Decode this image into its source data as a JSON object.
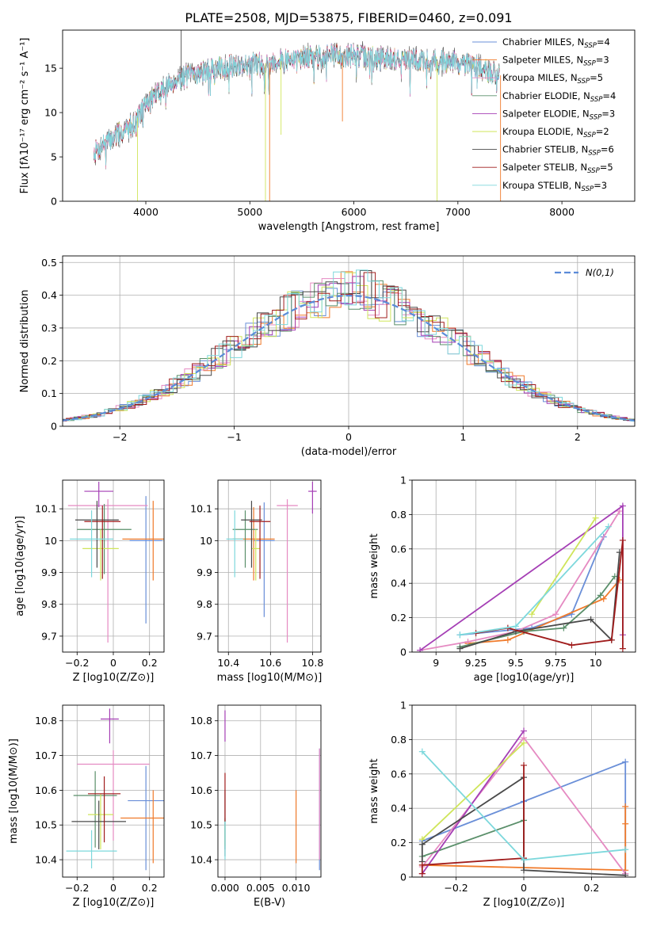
{
  "figure": {
    "title": "PLATE=2508, MJD=53875, FIBERID=0460, z=0.091"
  },
  "model_colors": {
    "Chabrier MILES": "#6a8fd8",
    "Salpeter MILES": "#f07a2a",
    "Kroupa MILES": "#e58ac2",
    "Chabrier ELODIE": "#5a8f6a",
    "Salpeter ELODIE": "#a53fb5",
    "Kroupa ELODIE": "#cfe55a",
    "Chabrier STELIB": "#4a4a4a",
    "Salpeter STELIB": "#a01c1c",
    "Kroupa STELIB": "#7dd8dc"
  },
  "chart_data": [
    {
      "id": "spectrum",
      "type": "line",
      "xlabel": "wavelength [Angstrom, rest frame]",
      "ylabel": "Flux [fλ10⁻¹⁷ erg cm⁻² s⁻¹ A⁻¹]",
      "xlim": [
        3200,
        8700
      ],
      "ylim": [
        0,
        19.3
      ],
      "xticks": [
        4000,
        5000,
        6000,
        7000,
        8000
      ],
      "yticks": [
        0,
        5,
        10,
        15
      ],
      "legend_position": "upper right",
      "legend": [
        "Chabrier MILES, N_SSP=4",
        "Salpeter MILES, N_SSP=3",
        "Kroupa MILES, N_SSP=5",
        "Chabrier ELODIE, N_SSP=4",
        "Salpeter ELODIE, N_SSP=3",
        "Kroupa ELODIE, N_SSP=2",
        "Chabrier STELIB, N_SSP=6",
        "Salpeter STELIB, N_SSP=5",
        "Kroupa STELIB, N_SSP=3"
      ],
      "legend_display": [
        {
          "pre": "Chabrier MILES, N",
          "sub": "SSP",
          "post": "=4"
        },
        {
          "pre": "Salpeter MILES, N",
          "sub": "SSP",
          "post": "=3"
        },
        {
          "pre": "Kroupa MILES, N",
          "sub": "SSP",
          "post": "=5"
        },
        {
          "pre": "Chabrier ELODIE, N",
          "sub": "SSP",
          "post": "=4"
        },
        {
          "pre": "Salpeter ELODIE, N",
          "sub": "SSP",
          "post": "=3"
        },
        {
          "pre": "Kroupa ELODIE, N",
          "sub": "SSP",
          "post": "=2"
        },
        {
          "pre": "Chabrier STELIB, N",
          "sub": "SSP",
          "post": "=6"
        },
        {
          "pre": "Salpeter STELIB, N",
          "sub": "SSP",
          "post": "=5"
        },
        {
          "pre": "Kroupa STELIB, N",
          "sub": "SSP",
          "post": "=3"
        }
      ],
      "legend_colors": [
        "#6a8fd8",
        "#f07a2a",
        "#e58ac2",
        "#5a8f6a",
        "#a53fb5",
        "#cfe55a",
        "#4a4a4a",
        "#a01c1c",
        "#7dd8dc"
      ],
      "continuum": {
        "x": [
          3500,
          3600,
          3700,
          3800,
          3900,
          4000,
          4100,
          4200,
          4300,
          4500,
          4700,
          4900,
          5100,
          5300,
          5500,
          5800,
          6000,
          6200,
          6500,
          6800,
          7000,
          7200,
          7400
        ],
        "y": [
          5.5,
          6.5,
          7.3,
          8.0,
          9.0,
          11.0,
          12.0,
          13.0,
          13.8,
          14.5,
          15.0,
          15.4,
          15.5,
          15.8,
          16.2,
          16.5,
          16.4,
          16.2,
          16.0,
          15.8,
          15.6,
          15.2,
          14.2
        ]
      },
      "spikes": [
        {
          "x": 3920,
          "y": 0
        },
        {
          "x": 4340,
          "y": 21
        },
        {
          "x": 5150,
          "y": 0
        },
        {
          "x": 5190,
          "y": 0
        },
        {
          "x": 5300,
          "y": 7.5
        },
        {
          "x": 5890,
          "y": 9.0
        },
        {
          "x": 6800,
          "y": 0
        },
        {
          "x": 7410,
          "y": 0
        }
      ]
    },
    {
      "id": "residual_hist",
      "type": "histogram",
      "xlabel": "(data-model)/error",
      "ylabel": "Normed distribution",
      "xlim": [
        -2.5,
        2.5
      ],
      "ylim": [
        0,
        0.52
      ],
      "xticks": [
        -2,
        -1,
        0,
        1,
        2
      ],
      "yticks": [
        0.0,
        0.1,
        0.2,
        0.3,
        0.4,
        0.5
      ],
      "grid": true,
      "legend_position": "upper right",
      "legend": [
        "N(0,1)"
      ],
      "reference_curve": {
        "name": "N(0,1)",
        "mean": 0,
        "sigma": 1,
        "color": "#5b8bd8",
        "style": "dashed"
      },
      "bin_width": 0.1
    },
    {
      "id": "age_vs_Z",
      "type": "scatter",
      "xlabel": "Z [log10(Z/Z⊙)]",
      "ylabel": "age  [log10(age/yr)]",
      "xlim": [
        -0.28,
        0.28
      ],
      "ylim": [
        9.65,
        10.19
      ],
      "xticks": [
        -0.2,
        0.0,
        0.2
      ],
      "yticks": [
        9.7,
        9.8,
        9.9,
        10.0,
        10.1
      ],
      "grid": true,
      "points": [
        {
          "model": "Chabrier MILES",
          "x": 0.18,
          "xerr": 0.09,
          "y": 10.0,
          "yerr": [
            0.26,
            0.14
          ]
        },
        {
          "model": "Salpeter MILES",
          "x": 0.22,
          "xerr": 0.17,
          "y": 10.005,
          "yerr": [
            0.13,
            0.12
          ]
        },
        {
          "model": "Kroupa MILES",
          "x": -0.03,
          "xerr": 0.22,
          "y": 10.11,
          "yerr": [
            0.43,
            0.02
          ]
        },
        {
          "model": "Chabrier ELODIE",
          "x": -0.05,
          "xerr": 0.15,
          "y": 10.035,
          "yerr": [
            0.14,
            0.08
          ]
        },
        {
          "model": "Salpeter ELODIE",
          "x": -0.08,
          "xerr": 0.08,
          "y": 10.155,
          "yerr": [
            0.05,
            0.03
          ]
        },
        {
          "model": "Kroupa ELODIE",
          "x": -0.07,
          "xerr": 0.1,
          "y": 9.975,
          "yerr": [
            0.1,
            0.06
          ]
        },
        {
          "model": "Chabrier STELIB",
          "x": -0.09,
          "xerr": 0.12,
          "y": 10.065,
          "yerr": [
            0.15,
            0.06
          ]
        },
        {
          "model": "Salpeter STELIB",
          "x": -0.06,
          "xerr": 0.1,
          "y": 10.06,
          "yerr": [
            0.18,
            0.05
          ]
        },
        {
          "model": "Kroupa STELIB",
          "x": -0.12,
          "xerr": 0.12,
          "y": 10.005,
          "yerr": [
            0.12,
            0.09
          ]
        }
      ]
    },
    {
      "id": "age_vs_mass",
      "type": "scatter",
      "xlabel": "mass [log10(M/M⊙)]",
      "ylabel": "",
      "xlim": [
        10.35,
        10.84
      ],
      "ylim": [
        9.65,
        10.19
      ],
      "xticks": [
        10.4,
        10.6,
        10.8
      ],
      "yticks": [
        9.7,
        9.8,
        9.9,
        10.0,
        10.1
      ],
      "grid": true,
      "points": [
        {
          "model": "Chabrier MILES",
          "x": 10.57,
          "xerr": 0.05,
          "y": 10.0,
          "yerr": [
            0.24,
            0.12
          ]
        },
        {
          "model": "Salpeter MILES",
          "x": 10.52,
          "xerr": 0.1,
          "y": 10.005,
          "yerr": [
            0.13,
            0.1
          ]
        },
        {
          "model": "Kroupa MILES",
          "x": 10.68,
          "xerr": 0.05,
          "y": 10.11,
          "yerr": [
            0.43,
            0.02
          ]
        },
        {
          "model": "Chabrier ELODIE",
          "x": 10.48,
          "xerr": 0.06,
          "y": 10.035,
          "yerr": [
            0.12,
            0.06
          ]
        },
        {
          "model": "Salpeter ELODIE",
          "x": 10.8,
          "xerr": 0.02,
          "y": 10.155,
          "yerr": [
            0.07,
            0.03
          ]
        },
        {
          "model": "Kroupa ELODIE",
          "x": 10.53,
          "xerr": 0.02,
          "y": 9.975,
          "yerr": [
            0.1,
            0.06
          ]
        },
        {
          "model": "Chabrier STELIB",
          "x": 10.51,
          "xerr": 0.05,
          "y": 10.065,
          "yerr": [
            0.15,
            0.06
          ]
        },
        {
          "model": "Salpeter STELIB",
          "x": 10.55,
          "xerr": 0.05,
          "y": 10.06,
          "yerr": [
            0.18,
            0.05
          ]
        },
        {
          "model": "Kroupa STELIB",
          "x": 10.43,
          "xerr": 0.04,
          "y": 10.005,
          "yerr": [
            0.12,
            0.09
          ]
        }
      ]
    },
    {
      "id": "weight_vs_age",
      "type": "line",
      "xlabel": "age  [log10(age/yr)]",
      "ylabel": "mass weight",
      "xlim": [
        8.85,
        10.25
      ],
      "ylim": [
        0.0,
        1.0
      ],
      "xticks": [
        9.0,
        9.25,
        9.5,
        9.75,
        10.0
      ],
      "yticks": [
        0.0,
        0.2,
        0.4,
        0.6,
        0.8,
        1.0
      ],
      "grid": true,
      "series": [
        {
          "model": "Chabrier MILES",
          "x": [
            9.15,
            9.6,
            9.85,
            10.05
          ],
          "y": [
            0.1,
            0.14,
            0.22,
            0.67
          ]
        },
        {
          "model": "Salpeter MILES",
          "x": [
            9.2,
            9.45,
            10.05,
            10.15
          ],
          "y": [
            0.05,
            0.07,
            0.31,
            0.42
          ]
        },
        {
          "model": "Kroupa MILES",
          "x": [
            8.9,
            9.2,
            9.5,
            9.75,
            10.15
          ],
          "y": [
            0.01,
            0.06,
            0.12,
            0.22,
            0.82
          ]
        },
        {
          "model": "Chabrier ELODIE",
          "x": [
            9.15,
            9.55,
            9.8,
            10.03,
            10.12
          ],
          "y": [
            0.03,
            0.12,
            0.14,
            0.33,
            0.44
          ]
        },
        {
          "model": "Salpeter ELODIE",
          "x": [
            8.9,
            10.17,
            10.17
          ],
          "y": [
            0.01,
            0.85,
            0.1
          ]
        },
        {
          "model": "Kroupa ELODIE",
          "x": [
            9.6,
            10.0
          ],
          "y": [
            0.22,
            0.78
          ]
        },
        {
          "model": "Chabrier STELIB",
          "x": [
            9.15,
            9.5,
            9.97,
            10.1,
            10.15
          ],
          "y": [
            0.02,
            0.12,
            0.19,
            0.07,
            0.58
          ]
        },
        {
          "model": "Salpeter STELIB",
          "x": [
            9.25,
            9.45,
            9.85,
            10.1,
            10.17,
            10.17
          ],
          "y": [
            0.11,
            0.14,
            0.04,
            0.07,
            0.65,
            0.02
          ]
        },
        {
          "model": "Kroupa STELIB",
          "x": [
            9.15,
            9.5,
            10.08
          ],
          "y": [
            0.1,
            0.15,
            0.73
          ]
        }
      ]
    },
    {
      "id": "mass_vs_Z",
      "type": "scatter",
      "xlabel": "Z [log10(Z/Z⊙)]",
      "ylabel": "mass [log10(M/M⊙)]",
      "xlim": [
        -0.28,
        0.28
      ],
      "ylim": [
        10.35,
        10.845
      ],
      "xticks": [
        -0.2,
        0.0,
        0.2
      ],
      "yticks": [
        10.4,
        10.5,
        10.6,
        10.7,
        10.8
      ],
      "grid": true,
      "points": [
        {
          "model": "Chabrier MILES",
          "x": 0.18,
          "xerr": 0.1,
          "y": 10.57,
          "yerr": [
            0.2,
            0.1
          ]
        },
        {
          "model": "Salpeter MILES",
          "x": 0.22,
          "xerr": 0.18,
          "y": 10.52,
          "yerr": [
            0.13,
            0.08
          ]
        },
        {
          "model": "Kroupa MILES",
          "x": 0.0,
          "xerr": 0.2,
          "y": 10.675,
          "yerr": [
            0.22,
            0.04
          ]
        },
        {
          "model": "Chabrier ELODIE",
          "x": -0.1,
          "xerr": 0.12,
          "y": 10.585,
          "yerr": [
            0.15,
            0.07
          ]
        },
        {
          "model": "Salpeter ELODIE",
          "x": -0.02,
          "xerr": 0.05,
          "y": 10.805,
          "yerr": [
            0.07,
            0.03
          ]
        },
        {
          "model": "Kroupa ELODIE",
          "x": -0.07,
          "xerr": 0.07,
          "y": 10.53,
          "yerr": [
            0.1,
            0.06
          ]
        },
        {
          "model": "Chabrier STELIB",
          "x": -0.08,
          "xerr": 0.15,
          "y": 10.51,
          "yerr": [
            0.08,
            0.06
          ]
        },
        {
          "model": "Salpeter STELIB",
          "x": -0.05,
          "xerr": 0.09,
          "y": 10.59,
          "yerr": [
            0.14,
            0.05
          ]
        },
        {
          "model": "Kroupa STELIB",
          "x": -0.12,
          "xerr": 0.14,
          "y": 10.425,
          "yerr": [
            0.05,
            0.06
          ]
        }
      ]
    },
    {
      "id": "mass_vs_ebv",
      "type": "scatter",
      "xlabel": "E(B-V)",
      "ylabel": "",
      "xlim": [
        -0.001,
        0.0135
      ],
      "ylim": [
        10.35,
        10.845
      ],
      "xticks": [
        0.0,
        0.005,
        0.01
      ],
      "xticklabels": [
        "0.000",
        "0.005",
        "0.010"
      ],
      "yticks": [
        10.4,
        10.5,
        10.6,
        10.7,
        10.8
      ],
      "grid": true,
      "points": [
        {
          "model": "Chabrier MILES",
          "x": 0.0133,
          "y": 10.5,
          "yerr": [
            0.13,
            0.22
          ]
        },
        {
          "model": "Salpeter MILES",
          "x": 0.01,
          "y": 10.49,
          "yerr": [
            0.1,
            0.11
          ]
        },
        {
          "model": "Kroupa MILES",
          "x": 0.0133,
          "y": 10.62,
          "yerr": [
            0.22,
            0.1
          ]
        },
        {
          "model": "Chabrier ELODIE",
          "x": 0.0,
          "y": 10.47,
          "yerr": [
            0.04,
            0.05
          ]
        },
        {
          "model": "Salpeter ELODIE",
          "x": 0.0,
          "y": 10.8,
          "yerr": [
            0.06,
            0.03
          ]
        },
        {
          "model": "Kroupa ELODIE",
          "x": 0.0,
          "y": 10.47,
          "yerr": [
            0.03,
            0.03
          ]
        },
        {
          "model": "Chabrier STELIB",
          "x": 0.0,
          "y": 10.51,
          "yerr": [
            0.1,
            0.09
          ]
        },
        {
          "model": "Salpeter STELIB",
          "x": 0.0,
          "y": 10.59,
          "yerr": [
            0.08,
            0.06
          ]
        },
        {
          "model": "Kroupa STELIB",
          "x": 0.0,
          "y": 10.46,
          "yerr": [
            0.06,
            0.05
          ]
        }
      ]
    },
    {
      "id": "weight_vs_Z",
      "type": "line",
      "xlabel": "Z [log10(Z/Z⊙)]",
      "ylabel": "mass weight",
      "xlim": [
        -0.33,
        0.33
      ],
      "ylim": [
        0.0,
        1.0
      ],
      "xticks": [
        -0.2,
        0.0,
        0.2
      ],
      "yticks": [
        0.0,
        0.2,
        0.4,
        0.6,
        0.8,
        1.0
      ],
      "grid": true,
      "series": [
        {
          "model": "Chabrier MILES",
          "x": [
            -0.3,
            0.0,
            0.3,
            0.3
          ],
          "y": [
            0.21,
            0.44,
            0.67,
            0.02
          ]
        },
        {
          "model": "Salpeter MILES",
          "x": [
            -0.3,
            0.3,
            0.3,
            0.3
          ],
          "y": [
            0.07,
            0.04,
            0.41,
            0.31
          ]
        },
        {
          "model": "Kroupa MILES",
          "x": [
            -0.3,
            0.0,
            0.3
          ],
          "y": [
            0.06,
            0.81,
            0.02
          ]
        },
        {
          "model": "Chabrier ELODIE",
          "x": [
            -0.3,
            0.0,
            0.0
          ],
          "y": [
            0.12,
            0.33,
            0.1
          ]
        },
        {
          "model": "Salpeter ELODIE",
          "x": [
            -0.3,
            0.0
          ],
          "y": [
            0.02,
            0.85
          ]
        },
        {
          "model": "Kroupa ELODIE",
          "x": [
            -0.3,
            0.0
          ],
          "y": [
            0.22,
            0.78
          ]
        },
        {
          "model": "Chabrier STELIB",
          "x": [
            -0.3,
            -0.3,
            0.0,
            0.0,
            0.3
          ],
          "y": [
            0.09,
            0.19,
            0.58,
            0.04,
            0.01
          ]
        },
        {
          "model": "Salpeter STELIB",
          "x": [
            -0.3,
            -0.3,
            0.0,
            0.0
          ],
          "y": [
            0.02,
            0.07,
            0.11,
            0.65
          ]
        },
        {
          "model": "Kroupa STELIB",
          "x": [
            -0.3,
            0.0,
            0.3
          ],
          "y": [
            0.73,
            0.1,
            0.16
          ]
        }
      ]
    }
  ]
}
